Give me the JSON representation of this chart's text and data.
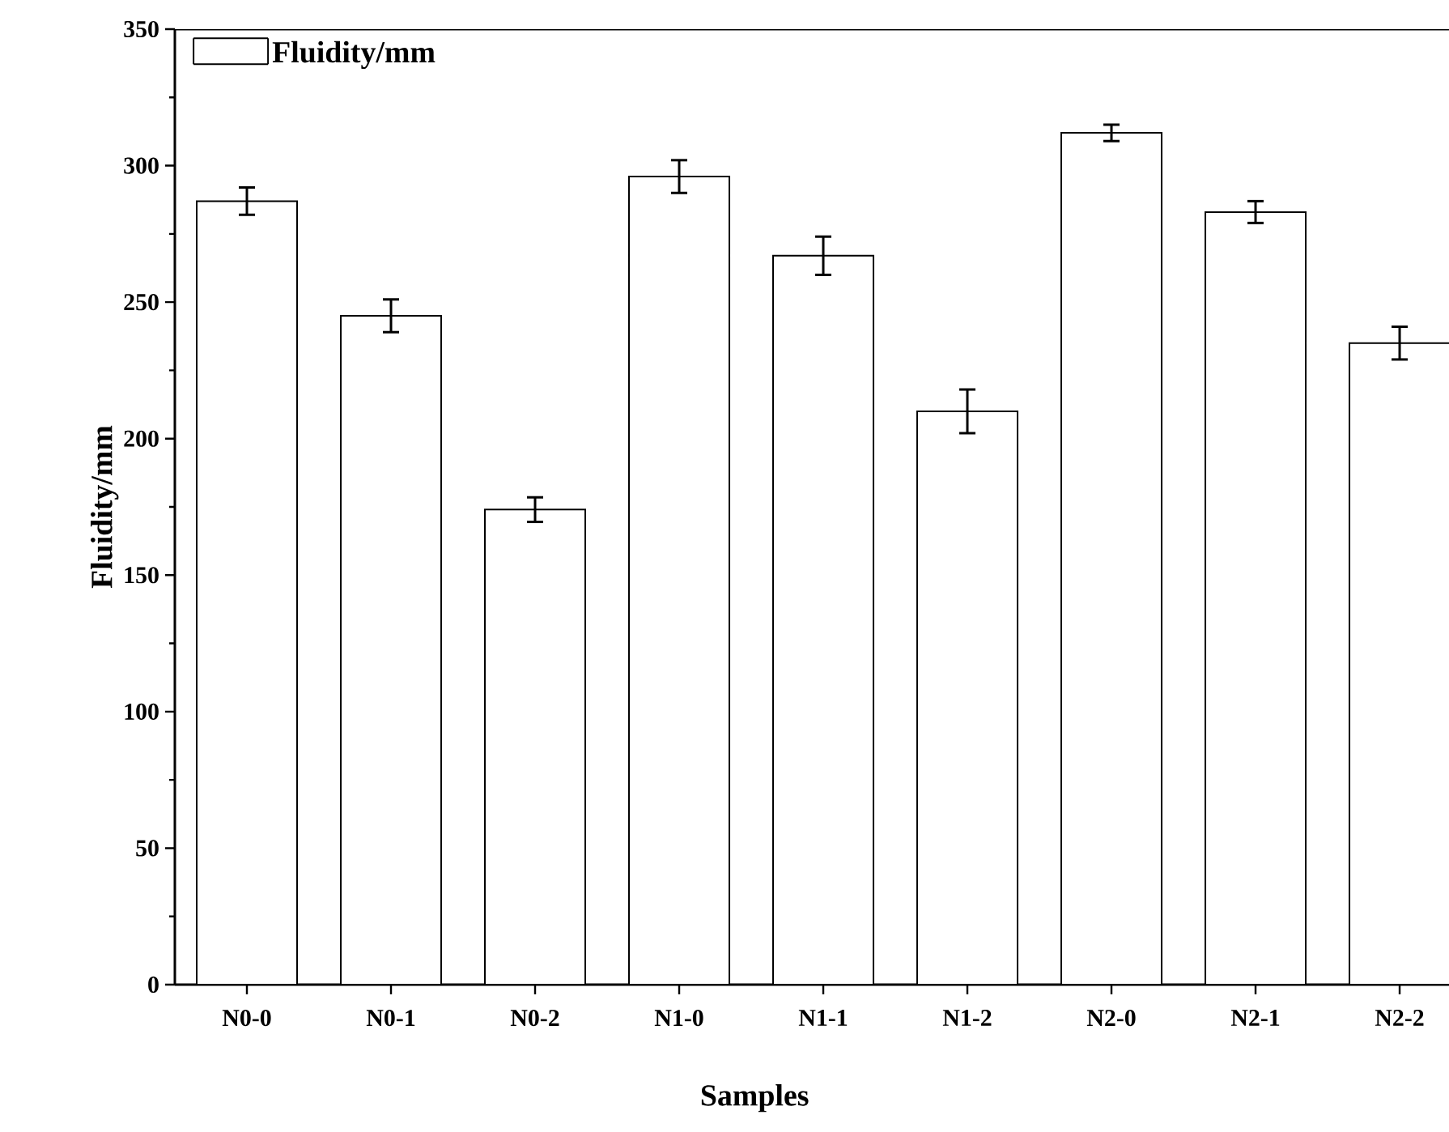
{
  "chart_data": {
    "type": "bar",
    "xlabel": "Samples",
    "ylabel": "Fluidity/mm",
    "categories": [
      "N0-0",
      "N0-1",
      "N0-2",
      "N1-0",
      "N1-1",
      "N1-2",
      "N2-0",
      "N2-1",
      "N2-2"
    ],
    "series": [
      {
        "name": "Fluidity/mm",
        "color": "#ffffff",
        "values": [
          287,
          245,
          174,
          296,
          267,
          210,
          312,
          283,
          235
        ],
        "errors": [
          5,
          6,
          4.5,
          6,
          7,
          8,
          3,
          4,
          6
        ]
      }
    ],
    "ylim": [
      0,
      350
    ],
    "yticks": [
      0,
      50,
      100,
      150,
      200,
      250,
      300,
      350
    ],
    "legend": "top left",
    "grid": false
  }
}
